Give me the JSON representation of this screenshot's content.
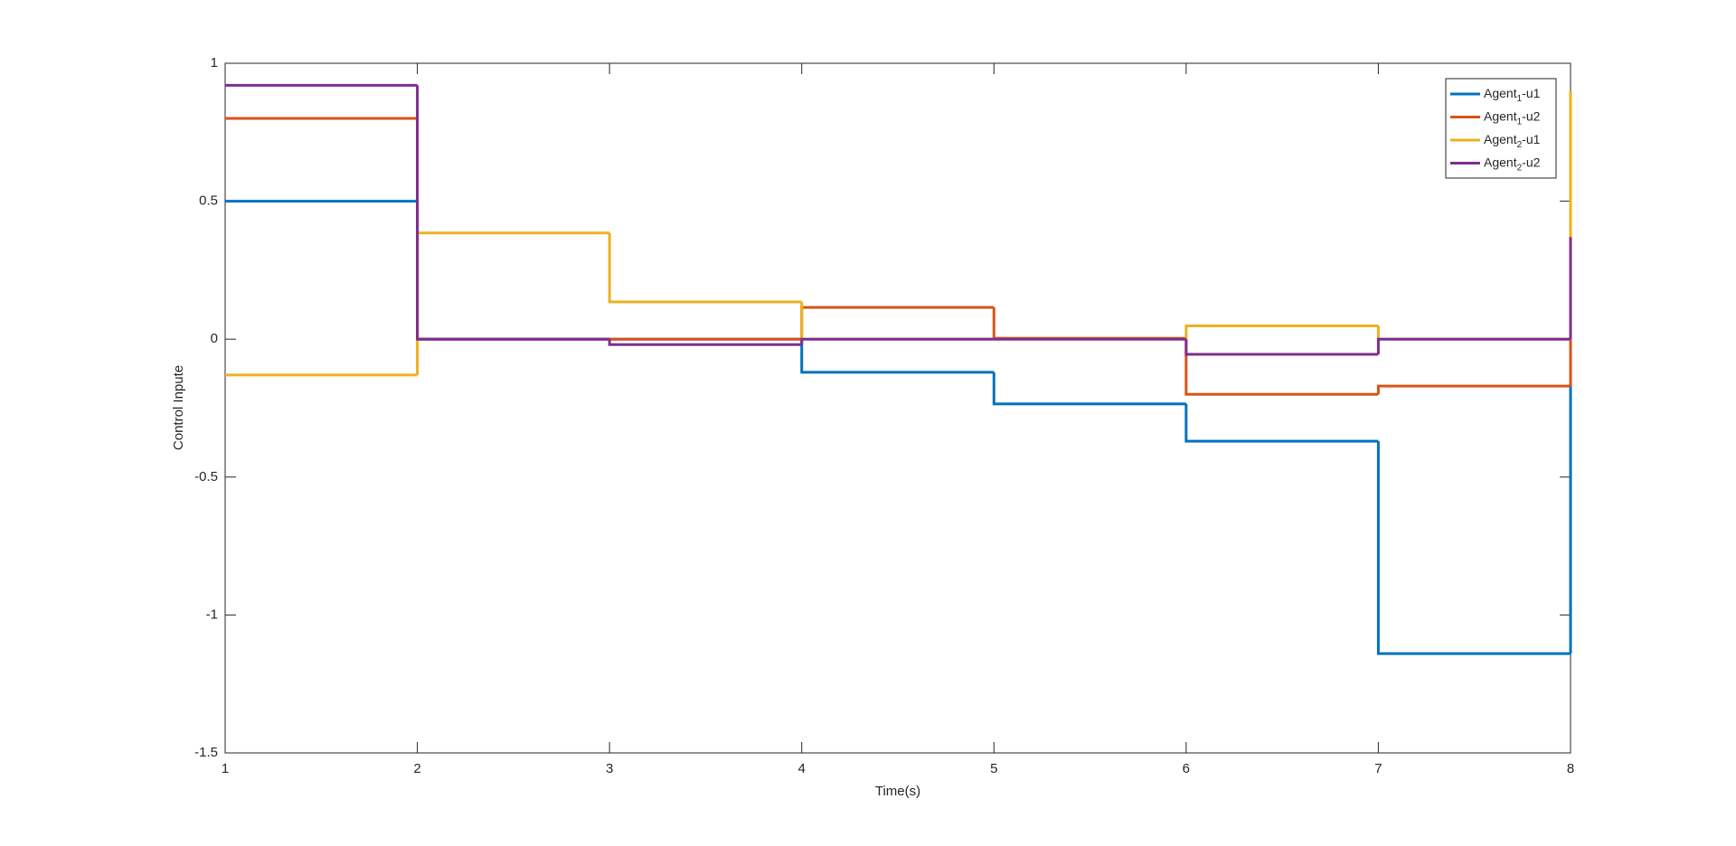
{
  "chart_data": {
    "type": "stairs",
    "xlabel": "Time(s)",
    "ylabel": "Control Inpute",
    "x": [
      1,
      2,
      3,
      4,
      5,
      6,
      7,
      8
    ],
    "series": [
      {
        "name": "Agent1-u1",
        "color": "#0072BD",
        "values": [
          0.5,
          0,
          0,
          -0.12,
          -0.235,
          -0.37,
          -1.14,
          -0.17
        ]
      },
      {
        "name": "Agent1-u2",
        "color": "#D95319",
        "values": [
          0.8,
          0,
          0,
          0.115,
          0.003,
          -0.2,
          -0.17,
          0
        ]
      },
      {
        "name": "Agent2-u1",
        "color": "#EDB120",
        "values": [
          -0.13,
          0.385,
          0.135,
          0,
          0,
          0.048,
          0,
          0.9
        ]
      },
      {
        "name": "Agent2-u2",
        "color": "#7E2F8E",
        "values": [
          0.92,
          0,
          -0.02,
          0,
          0,
          -0.055,
          0,
          0.37
        ]
      }
    ],
    "xlim": [
      1,
      8
    ],
    "xticks": [
      1,
      2,
      3,
      4,
      5,
      6,
      7,
      8
    ],
    "ylim": [
      -1.5,
      1
    ],
    "yticks": [
      -1.5,
      -1,
      -0.5,
      0,
      0.5,
      1
    ],
    "legend": "upper right"
  }
}
